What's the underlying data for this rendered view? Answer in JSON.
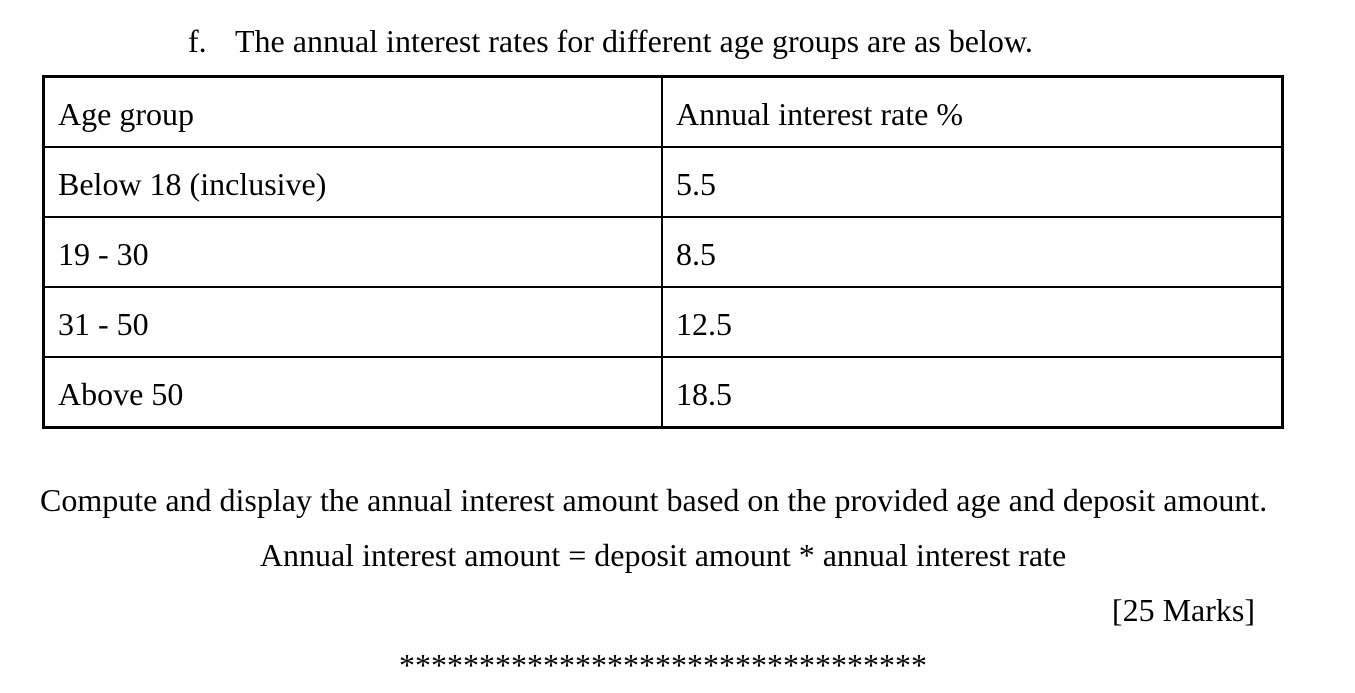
{
  "doc": {
    "item_label": "f.",
    "heading": "The annual interest rates for different age groups are as below.",
    "table": {
      "headers": [
        "Age group",
        "Annual interest rate %"
      ],
      "rows": [
        {
          "age_group": "Below 18 (inclusive)",
          "rate": "5.5"
        },
        {
          "age_group": "19 - 30",
          "rate": "8.5"
        },
        {
          "age_group": "31 - 50",
          "rate": "12.5"
        },
        {
          "age_group": "Above 50",
          "rate": "18.5"
        }
      ]
    },
    "instruction": "Compute and display the annual interest amount based on the provided age and deposit amount.",
    "formula": "Annual interest amount = deposit amount * annual interest rate",
    "marks": "[25 Marks]",
    "separator": "*********************************"
  },
  "colors": {
    "text": "#000000",
    "background": "#ffffff",
    "table_border": "#000000"
  }
}
